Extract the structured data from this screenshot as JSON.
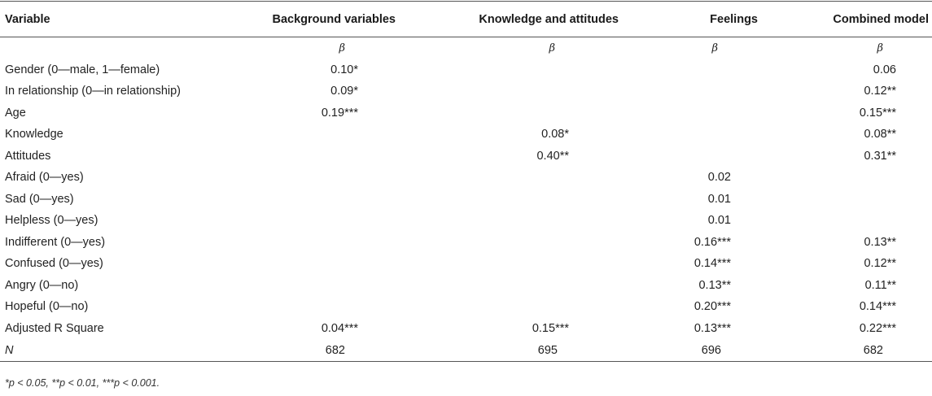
{
  "headers": [
    "Variable",
    "Background variables",
    "Knowledge and attitudes",
    "Feelings",
    "Combined model"
  ],
  "beta_row": [
    "",
    "β",
    "β",
    "β",
    "β"
  ],
  "rows": [
    [
      "Gender (0—male, 1—female)",
      "0.10*",
      "",
      "",
      "0.06"
    ],
    [
      "In relationship (0—in relationship)",
      "0.09*",
      "",
      "",
      "0.12**"
    ],
    [
      "Age",
      "0.19***",
      "",
      "",
      "0.15***"
    ],
    [
      "Knowledge",
      "",
      "0.08*",
      "",
      "0.08**"
    ],
    [
      "Attitudes",
      "",
      "0.40**",
      "",
      "0.31**"
    ],
    [
      "Afraid (0—yes)",
      "",
      "",
      "0.02",
      ""
    ],
    [
      "Sad (0—yes)",
      "",
      "",
      "0.01",
      ""
    ],
    [
      "Helpless (0—yes)",
      "",
      "",
      "0.01",
      ""
    ],
    [
      "Indifferent (0—yes)",
      "",
      "",
      "0.16***",
      "0.13**"
    ],
    [
      "Confused (0—yes)",
      "",
      "",
      "0.14***",
      "0.12**"
    ],
    [
      "Angry (0—no)",
      "",
      "",
      "0.13**",
      "0.11**"
    ],
    [
      "Hopeful (0—no)",
      "",
      "",
      "0.20***",
      "0.14***"
    ],
    [
      "Adjusted R Square",
      "0.04***",
      "0.15***",
      "0.13***",
      "0.22***"
    ]
  ],
  "n_row": [
    "N",
    "682",
    "695",
    "696",
    "682"
  ],
  "footnote": "*p < 0.05, **p < 0.01, ***p < 0.001."
}
